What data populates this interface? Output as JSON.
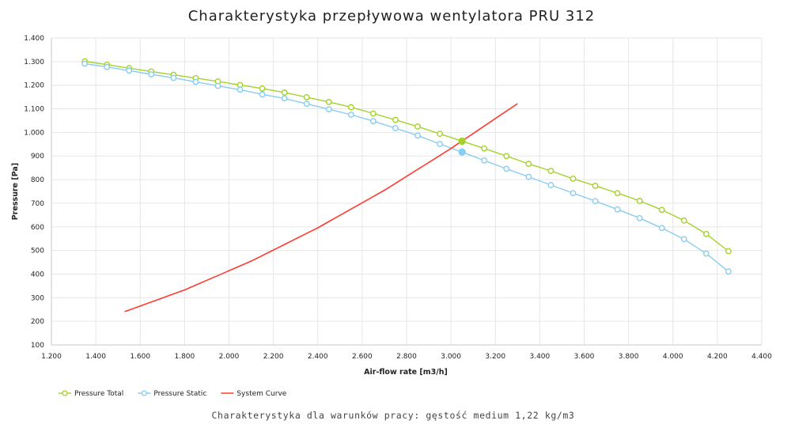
{
  "chart_data": {
    "type": "line",
    "title": "Charakterystyka przepływowa wentylatora PRU 312",
    "subtitle": "Charakterystyka dla warunków pracy: gęstość medium 1,22 kg/m3",
    "xlabel": "Air-flow rate [m3/h]",
    "ylabel": "Pressure [Pa]",
    "xlim": [
      1200,
      4400
    ],
    "ylim": [
      100,
      1400
    ],
    "x_ticks": [
      1200,
      1400,
      1600,
      1800,
      2000,
      2200,
      2400,
      2600,
      2800,
      3000,
      3200,
      3400,
      3600,
      3800,
      4000,
      4200,
      4400
    ],
    "x_tick_labels": [
      "1.200",
      "1.400",
      "1.600",
      "1.800",
      "2.000",
      "2.200",
      "2.400",
      "2.600",
      "2.800",
      "3.000",
      "3.200",
      "3.400",
      "3.600",
      "3.800",
      "4.000",
      "4.200",
      "4.400"
    ],
    "y_ticks": [
      100,
      200,
      300,
      400,
      500,
      600,
      700,
      800,
      900,
      1000,
      1100,
      1200,
      1300,
      1400
    ],
    "y_tick_labels": [
      "100",
      "200",
      "300",
      "400",
      "500",
      "600",
      "700",
      "800",
      "900",
      "1.000",
      "1.100",
      "1.200",
      "1.300",
      "1.400"
    ],
    "grid": true,
    "legend_position": "bottom-left",
    "series": [
      {
        "name": "Pressure Total",
        "color": "#a4d22a",
        "marker": "open-circle",
        "x": [
          1350,
          1450,
          1550,
          1650,
          1750,
          1850,
          1950,
          2050,
          2150,
          2250,
          2350,
          2450,
          2550,
          2650,
          2750,
          2850,
          2950,
          3050,
          3150,
          3250,
          3350,
          3450,
          3550,
          3650,
          3750,
          3850,
          3950,
          4050,
          4150,
          4250
        ],
        "y": [
          1301,
          1287,
          1272,
          1258,
          1244,
          1230,
          1216,
          1201,
          1186,
          1169,
          1149,
          1129,
          1107,
          1080,
          1053,
          1025,
          994,
          963,
          932,
          900,
          867,
          837,
          804,
          774,
          743,
          710,
          672,
          627,
          570,
          497
        ]
      },
      {
        "name": "Pressure Static",
        "color": "#89cdf0",
        "marker": "open-circle",
        "x": [
          1350,
          1450,
          1550,
          1650,
          1750,
          1850,
          1950,
          2050,
          2150,
          2250,
          2350,
          2450,
          2550,
          2650,
          2750,
          2850,
          2950,
          3050,
          3150,
          3250,
          3350,
          3450,
          3550,
          3650,
          3750,
          3850,
          3950,
          4050,
          4150,
          4250
        ],
        "y": [
          1291,
          1277,
          1262,
          1246,
          1231,
          1214,
          1197,
          1181,
          1161,
          1144,
          1121,
          1098,
          1075,
          1048,
          1018,
          987,
          951,
          917,
          881,
          846,
          812,
          777,
          743,
          709,
          674,
          637,
          595,
          548,
          487,
          411
        ]
      },
      {
        "name": "System Curve",
        "color": "#ff3b30",
        "marker": "none",
        "x": [
          1530,
          1800,
          2100,
          2400,
          2700,
          3000,
          3300
        ],
        "y": [
          241,
          333,
          455,
          596,
          755,
          932,
          1122
        ]
      }
    ],
    "operating_points": [
      {
        "series": "Pressure Total",
        "x": 3050,
        "y": 963,
        "color": "#a4d22a"
      },
      {
        "series": "Pressure Static",
        "x": 3050,
        "y": 917,
        "color": "#89cdf0"
      }
    ]
  }
}
